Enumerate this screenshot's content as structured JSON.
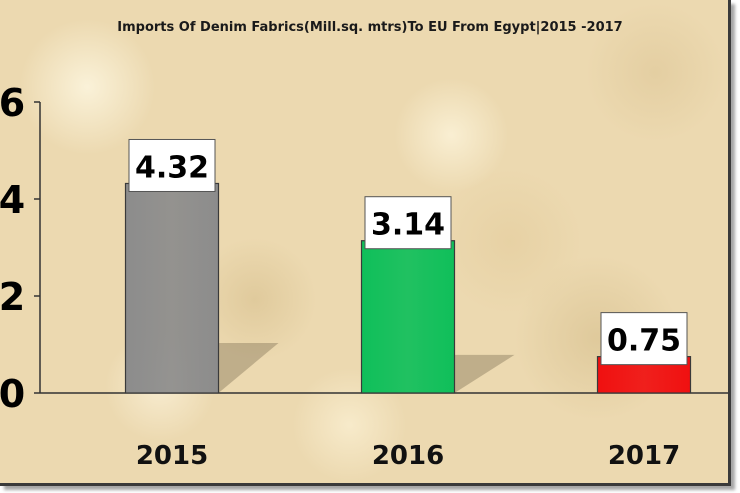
{
  "chart_data": {
    "type": "bar",
    "title": "Imports Of Denim Fabrics(Mill.sq. mtrs)To EU From Egypt|2015 -2017",
    "xlabel": "",
    "ylabel": "",
    "categories": [
      "2015",
      "2016",
      "2017"
    ],
    "values": [
      4.32,
      3.14,
      0.75
    ],
    "data_labels": [
      "4.32",
      "3.14",
      "0.75"
    ],
    "bar_colors": [
      "#8c8c8c",
      "#0fbf5a",
      "#f01010"
    ],
    "y_ticks": [
      "6",
      "4",
      "2",
      "0"
    ],
    "ylim": [
      0,
      6
    ],
    "grid": false,
    "legend": "none"
  }
}
